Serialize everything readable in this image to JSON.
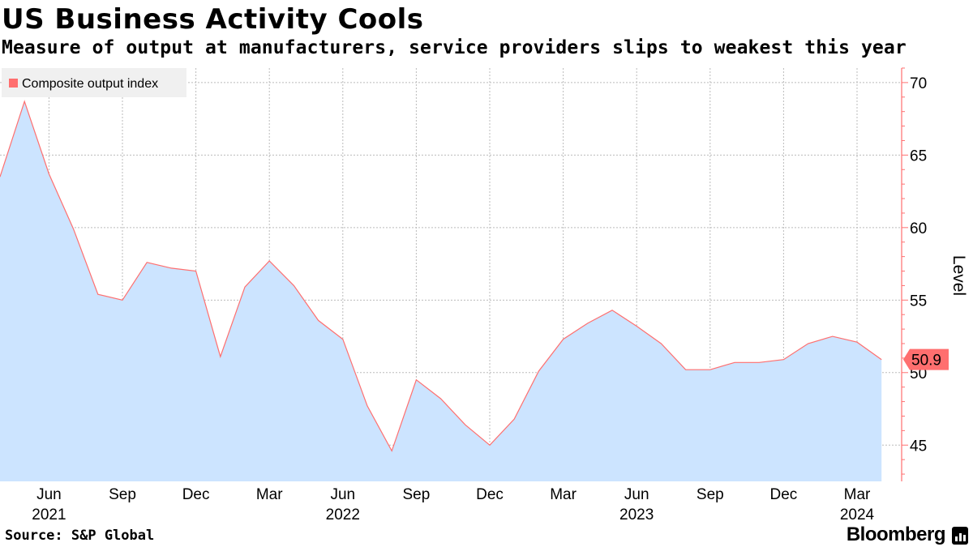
{
  "title": "US Business Activity Cools",
  "subtitle": "Measure of output at manufacturers, service providers slips to weakest this year",
  "source": "Source: S&P Global",
  "brand": "Bloomberg",
  "chart_data": {
    "type": "area",
    "legend": {
      "label": "Composite output index",
      "placement": "top-left"
    },
    "series": [
      {
        "name": "Composite output index",
        "color": "#ff6f6f",
        "fill": "#cce4ff",
        "x": [
          "2021-04",
          "2021-05",
          "2021-06",
          "2021-07",
          "2021-08",
          "2021-09",
          "2021-10",
          "2021-11",
          "2021-12",
          "2022-01",
          "2022-02",
          "2022-03",
          "2022-04",
          "2022-05",
          "2022-06",
          "2022-07",
          "2022-08",
          "2022-09",
          "2022-10",
          "2022-11",
          "2022-12",
          "2023-01",
          "2023-02",
          "2023-03",
          "2023-04",
          "2023-05",
          "2023-06",
          "2023-07",
          "2023-08",
          "2023-09",
          "2023-10",
          "2023-11",
          "2023-12",
          "2024-01",
          "2024-02",
          "2024-03",
          "2024-04"
        ],
        "values": [
          63.5,
          68.7,
          63.7,
          59.9,
          55.4,
          55.0,
          57.6,
          57.2,
          57.0,
          51.1,
          55.9,
          57.7,
          56.0,
          53.6,
          52.3,
          47.7,
          44.6,
          49.5,
          48.2,
          46.4,
          45.0,
          46.8,
          50.1,
          52.3,
          53.4,
          54.3,
          53.2,
          52.0,
          50.2,
          50.2,
          50.7,
          50.7,
          50.9,
          52.0,
          52.5,
          52.1,
          50.9
        ]
      }
    ],
    "ylabel": "Level",
    "ylim": [
      42.5,
      71
    ],
    "yticks": [
      45,
      50,
      55,
      60,
      65,
      70
    ],
    "xticks": [
      {
        "date": "2021-06",
        "label": "Jun"
      },
      {
        "date": "2021-09",
        "label": "Sep"
      },
      {
        "date": "2021-12",
        "label": "Dec"
      },
      {
        "date": "2022-03",
        "label": "Mar"
      },
      {
        "date": "2022-06",
        "label": "Jun"
      },
      {
        "date": "2022-09",
        "label": "Sep"
      },
      {
        "date": "2022-12",
        "label": "Dec"
      },
      {
        "date": "2023-03",
        "label": "Mar"
      },
      {
        "date": "2023-06",
        "label": "Jun"
      },
      {
        "date": "2023-09",
        "label": "Sep"
      },
      {
        "date": "2023-12",
        "label": "Dec"
      },
      {
        "date": "2024-03",
        "label": "Mar"
      }
    ],
    "year_labels": [
      {
        "date": "2021-06",
        "label": "2021"
      },
      {
        "date": "2022-06",
        "label": "2022"
      },
      {
        "date": "2023-06",
        "label": "2023"
      },
      {
        "date": "2024-03",
        "label": "2024"
      }
    ],
    "last_value_label": "50.9",
    "grid": true
  }
}
